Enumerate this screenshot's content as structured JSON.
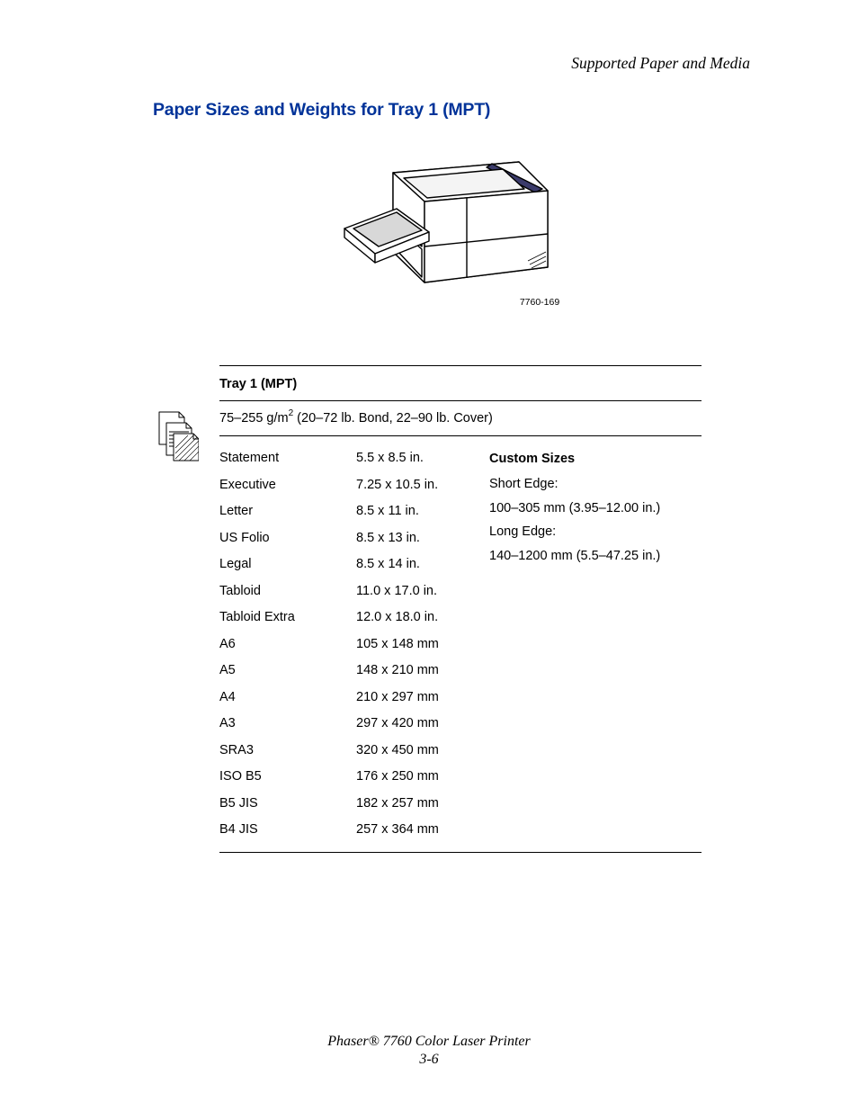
{
  "running_header": "Supported Paper and Media",
  "section_title": "Paper Sizes and Weights for Tray 1 (MPT)",
  "figure": {
    "caption": "7760-169",
    "stroke": "#000000",
    "fill_light": "#ffffff",
    "fill_shade": "#f3f3f3",
    "fill_hatch": "#e0e0e0"
  },
  "margin_icon": {
    "stroke": "#000000",
    "fill": "#ffffff",
    "hatch": "#c8c8c8"
  },
  "table": {
    "header": "Tray 1 (MPT)",
    "weight_pre": "75–255 g/m",
    "weight_sup": "2",
    "weight_post": " (20–72 lb. Bond, 22–90 lb. Cover)",
    "rows": [
      {
        "name": "Statement",
        "dim": "5.5 x 8.5 in."
      },
      {
        "name": "Executive",
        "dim": "7.25 x 10.5 in."
      },
      {
        "name": "Letter",
        "dim": "8.5 x 11 in."
      },
      {
        "name": "US Folio",
        "dim": "8.5 x 13 in."
      },
      {
        "name": "Legal",
        "dim": "8.5 x 14 in."
      },
      {
        "name": "Tabloid",
        "dim": "11.0 x 17.0 in."
      },
      {
        "name": "Tabloid Extra",
        "dim": "12.0 x 18.0 in."
      },
      {
        "name": "A6",
        "dim": "105 x 148 mm"
      },
      {
        "name": "A5",
        "dim": "148 x 210 mm"
      },
      {
        "name": "A4",
        "dim": "210 x 297 mm"
      },
      {
        "name": "A3",
        "dim": "297 x 420 mm"
      },
      {
        "name": "SRA3",
        "dim": "320 x 450 mm"
      },
      {
        "name": "ISO B5",
        "dim": "176 x 250 mm"
      },
      {
        "name": "B5 JIS",
        "dim": "182 x 257 mm"
      },
      {
        "name": "B4 JIS",
        "dim": "257 x 364 mm"
      }
    ],
    "custom": {
      "heading": "Custom Sizes",
      "lines": [
        "Short Edge:",
        "100–305 mm (3.95–12.00 in.)",
        "Long Edge:",
        "140–1200 mm (5.5–47.25 in.)"
      ]
    }
  },
  "footer": {
    "product": "Phaser® 7760 Color Laser Printer",
    "page": "3-6"
  },
  "colors": {
    "link_blue": "#003399",
    "text": "#000000",
    "rule": "#000000",
    "background": "#ffffff"
  },
  "typography": {
    "body_family": "Arial, Helvetica, sans-serif",
    "serif_family": "Times New Roman, Times, serif",
    "section_title_pt": 19.5,
    "body_pt": 14.5,
    "running_header_pt": 17.5,
    "footer_pt": 16,
    "caption_pt": 10.5
  }
}
